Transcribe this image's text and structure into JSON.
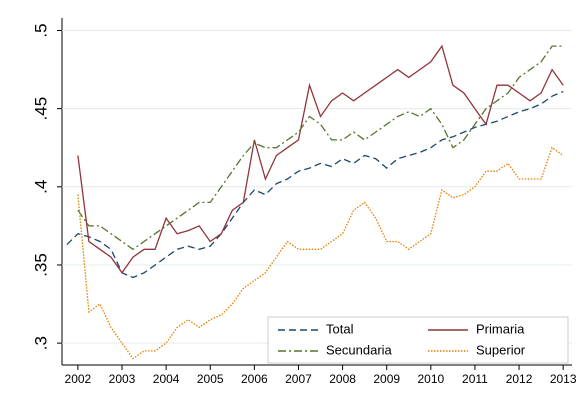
{
  "chart_data": {
    "type": "line",
    "x": [
      2001.75,
      2002,
      2002.25,
      2002.5,
      2002.75,
      2003,
      2003.25,
      2003.5,
      2003.75,
      2004,
      2004.25,
      2004.5,
      2004.75,
      2005,
      2005.25,
      2005.5,
      2005.75,
      2006,
      2006.25,
      2006.5,
      2006.75,
      2007,
      2007.25,
      2007.5,
      2007.75,
      2008,
      2008.25,
      2008.5,
      2008.75,
      2009,
      2009.25,
      2009.5,
      2009.75,
      2010,
      2010.25,
      2010.5,
      2010.75,
      2011,
      2011.25,
      2011.5,
      2011.75,
      2012,
      2012.25,
      2012.5,
      2012.75,
      2013
    ],
    "series": [
      {
        "name": "Total",
        "color": "#1a476f",
        "style": "dashed",
        "values": [
          0.363,
          0.37,
          0.368,
          0.365,
          0.36,
          0.345,
          0.342,
          0.345,
          0.35,
          0.355,
          0.36,
          0.362,
          0.36,
          0.362,
          0.37,
          0.38,
          0.39,
          0.398,
          0.395,
          0.402,
          0.405,
          0.41,
          0.412,
          0.415,
          0.413,
          0.418,
          0.415,
          0.42,
          0.418,
          0.412,
          0.418,
          0.42,
          0.422,
          0.425,
          0.43,
          0.432,
          0.435,
          0.438,
          0.44,
          0.442,
          0.445,
          0.448,
          0.45,
          0.453,
          0.458,
          0.461
        ]
      },
      {
        "name": "Primaria",
        "color": "#90353b",
        "style": "solid",
        "values": [
          null,
          0.42,
          0.365,
          0.36,
          0.355,
          0.345,
          0.355,
          0.36,
          0.36,
          0.38,
          0.37,
          0.372,
          0.375,
          0.365,
          0.37,
          0.385,
          0.39,
          0.43,
          0.405,
          0.42,
          0.425,
          0.43,
          0.465,
          0.445,
          0.455,
          0.46,
          0.455,
          0.46,
          0.465,
          0.47,
          0.475,
          0.47,
          0.475,
          0.48,
          0.49,
          0.465,
          0.46,
          0.45,
          0.44,
          0.465,
          0.465,
          0.46,
          0.455,
          0.46,
          0.475,
          0.465
        ]
      },
      {
        "name": "Secundaria",
        "color": "#55752f",
        "style": "dashdot",
        "values": [
          null,
          0.385,
          0.375,
          0.375,
          0.37,
          0.365,
          0.36,
          0.365,
          0.37,
          0.375,
          0.38,
          0.385,
          0.39,
          0.39,
          0.4,
          0.41,
          0.42,
          0.428,
          0.425,
          0.425,
          0.43,
          0.435,
          0.445,
          0.44,
          0.43,
          0.43,
          0.435,
          0.43,
          0.435,
          0.44,
          0.445,
          0.448,
          0.445,
          0.45,
          0.44,
          0.425,
          0.43,
          0.44,
          0.45,
          0.455,
          0.46,
          0.47,
          0.475,
          0.48,
          0.49,
          0.49
        ]
      },
      {
        "name": "Superior",
        "color": "#e37e00",
        "style": "dotted",
        "values": [
          null,
          0.395,
          0.32,
          0.325,
          0.31,
          0.3,
          0.29,
          0.295,
          0.295,
          0.3,
          0.31,
          0.315,
          0.31,
          0.315,
          0.318,
          0.325,
          0.335,
          0.34,
          0.345,
          0.355,
          0.365,
          0.36,
          0.36,
          0.36,
          0.365,
          0.37,
          0.385,
          0.39,
          0.38,
          0.365,
          0.365,
          0.36,
          0.365,
          0.37,
          0.398,
          0.393,
          0.395,
          0.4,
          0.41,
          0.41,
          0.415,
          0.405,
          0.405,
          0.405,
          0.425,
          0.42
        ]
      }
    ],
    "xlim": [
      2001.64,
      2013.2
    ],
    "xticks": [
      2002,
      2003,
      2004,
      2005,
      2006,
      2007,
      2008,
      2009,
      2010,
      2011,
      2012,
      2013
    ],
    "ylim": [
      0.286,
      0.508
    ],
    "yticks": [
      {
        "value": 0.3,
        "label": ".3"
      },
      {
        "value": 0.35,
        "label": ".35"
      },
      {
        "value": 0.4,
        "label": ".4"
      },
      {
        "value": 0.45,
        "label": ".45"
      },
      {
        "value": 0.5,
        "label": ".5"
      }
    ],
    "grid": true,
    "legend": "lower right"
  }
}
